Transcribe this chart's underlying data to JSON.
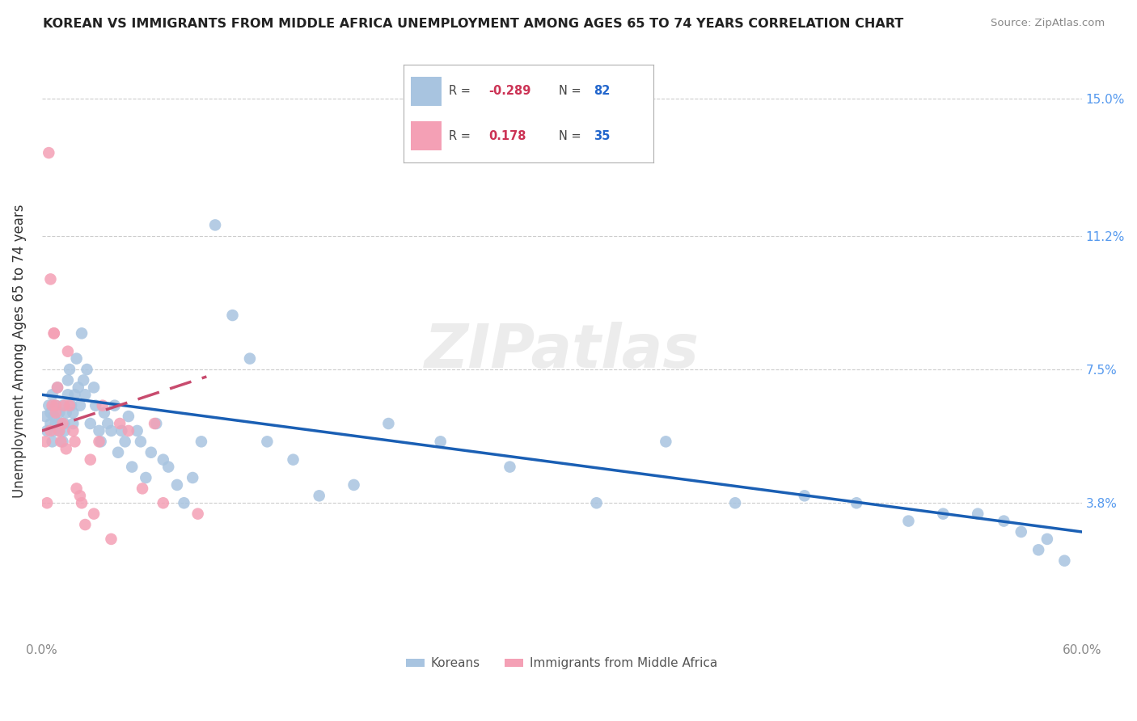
{
  "title": "KOREAN VS IMMIGRANTS FROM MIDDLE AFRICA UNEMPLOYMENT AMONG AGES 65 TO 74 YEARS CORRELATION CHART",
  "source": "Source: ZipAtlas.com",
  "ylabel": "Unemployment Among Ages 65 to 74 years",
  "xlim": [
    0.0,
    0.6
  ],
  "ylim": [
    0.0,
    0.16
  ],
  "ytick_positions": [
    0.038,
    0.075,
    0.112,
    0.15
  ],
  "ytick_labels": [
    "3.8%",
    "7.5%",
    "11.2%",
    "15.0%"
  ],
  "korean_color": "#a8c4e0",
  "immigrant_color": "#f4a0b5",
  "trend_korean_color": "#1a5fb4",
  "trend_immigrant_color": "#c84b6e",
  "watermark": "ZIPatlas",
  "korean_scatter_x": [
    0.002,
    0.003,
    0.004,
    0.005,
    0.005,
    0.006,
    0.006,
    0.007,
    0.007,
    0.008,
    0.008,
    0.009,
    0.01,
    0.01,
    0.011,
    0.012,
    0.012,
    0.013,
    0.013,
    0.014,
    0.015,
    0.015,
    0.016,
    0.017,
    0.018,
    0.018,
    0.019,
    0.02,
    0.021,
    0.022,
    0.023,
    0.024,
    0.025,
    0.026,
    0.028,
    0.03,
    0.031,
    0.033,
    0.034,
    0.036,
    0.038,
    0.04,
    0.042,
    0.044,
    0.046,
    0.048,
    0.05,
    0.052,
    0.055,
    0.057,
    0.06,
    0.063,
    0.066,
    0.07,
    0.073,
    0.078,
    0.082,
    0.087,
    0.092,
    0.1,
    0.11,
    0.12,
    0.13,
    0.145,
    0.16,
    0.18,
    0.2,
    0.23,
    0.27,
    0.32,
    0.36,
    0.4,
    0.44,
    0.47,
    0.5,
    0.52,
    0.54,
    0.555,
    0.565,
    0.575,
    0.58,
    0.59
  ],
  "korean_scatter_y": [
    0.062,
    0.058,
    0.065,
    0.06,
    0.063,
    0.055,
    0.068,
    0.062,
    0.058,
    0.065,
    0.06,
    0.07,
    0.058,
    0.063,
    0.06,
    0.055,
    0.065,
    0.06,
    0.058,
    0.063,
    0.072,
    0.068,
    0.075,
    0.065,
    0.063,
    0.06,
    0.068,
    0.078,
    0.07,
    0.065,
    0.085,
    0.072,
    0.068,
    0.075,
    0.06,
    0.07,
    0.065,
    0.058,
    0.055,
    0.063,
    0.06,
    0.058,
    0.065,
    0.052,
    0.058,
    0.055,
    0.062,
    0.048,
    0.058,
    0.055,
    0.045,
    0.052,
    0.06,
    0.05,
    0.048,
    0.043,
    0.038,
    0.045,
    0.055,
    0.115,
    0.09,
    0.078,
    0.055,
    0.05,
    0.04,
    0.043,
    0.06,
    0.055,
    0.048,
    0.038,
    0.055,
    0.038,
    0.04,
    0.038,
    0.033,
    0.035,
    0.035,
    0.033,
    0.03,
    0.025,
    0.028,
    0.022
  ],
  "immigrant_scatter_x": [
    0.002,
    0.003,
    0.004,
    0.005,
    0.005,
    0.006,
    0.007,
    0.007,
    0.008,
    0.008,
    0.009,
    0.01,
    0.011,
    0.012,
    0.013,
    0.014,
    0.015,
    0.016,
    0.018,
    0.019,
    0.02,
    0.022,
    0.023,
    0.025,
    0.028,
    0.03,
    0.033,
    0.035,
    0.04,
    0.045,
    0.05,
    0.058,
    0.065,
    0.07,
    0.09
  ],
  "immigrant_scatter_y": [
    0.055,
    0.038,
    0.135,
    0.058,
    0.1,
    0.065,
    0.085,
    0.085,
    0.065,
    0.063,
    0.07,
    0.058,
    0.055,
    0.06,
    0.065,
    0.053,
    0.08,
    0.065,
    0.058,
    0.055,
    0.042,
    0.04,
    0.038,
    0.032,
    0.05,
    0.035,
    0.055,
    0.065,
    0.028,
    0.06,
    0.058,
    0.042,
    0.06,
    0.038,
    0.035
  ],
  "korean_trend_x": [
    0.0,
    0.6
  ],
  "korean_trend_y": [
    0.068,
    0.03
  ],
  "immigrant_trend_x": [
    0.0,
    0.095
  ],
  "immigrant_trend_y": [
    0.058,
    0.073
  ]
}
